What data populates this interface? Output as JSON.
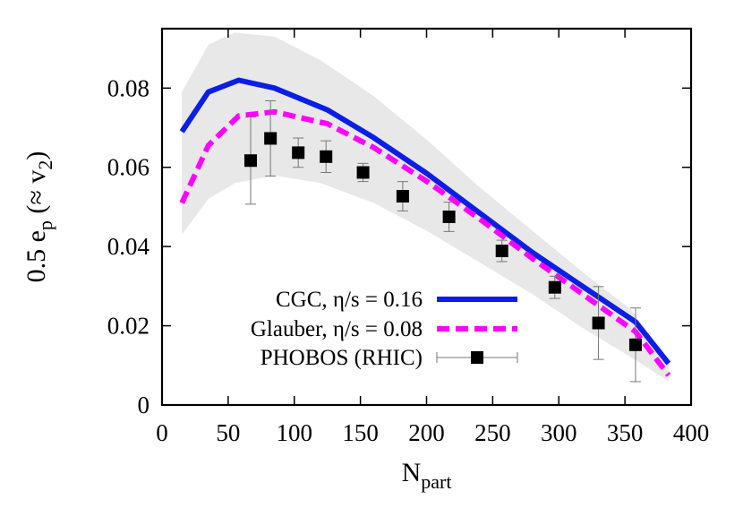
{
  "chart_data": {
    "type": "line",
    "xlabel": "N",
    "xlabel_sub": "part",
    "ylabel_parts": [
      "0.5 e",
      "p",
      " (≈ v",
      "2",
      ")"
    ],
    "xlim": [
      0,
      400
    ],
    "ylim": [
      0,
      0.095
    ],
    "xticks": [
      0,
      50,
      100,
      150,
      200,
      250,
      300,
      350,
      400
    ],
    "yticks": [
      0,
      0.02,
      0.04,
      0.06,
      0.08
    ],
    "xtick_labels": [
      "0",
      "50",
      "100",
      "150",
      "200",
      "250",
      "300",
      "350",
      "400"
    ],
    "ytick_labels": [
      "0",
      "0.02",
      "0.04",
      "0.06",
      "0.08"
    ],
    "legend_position": "bottom-right",
    "band": {
      "color": "#e8e8e8",
      "x": [
        15,
        35,
        55,
        85,
        120,
        160,
        200,
        240,
        280,
        320,
        355,
        383
      ],
      "upper": [
        0.079,
        0.091,
        0.094,
        0.093,
        0.087,
        0.078,
        0.067,
        0.055,
        0.044,
        0.033,
        0.024,
        0.011
      ],
      "lower": [
        0.043,
        0.052,
        0.056,
        0.058,
        0.056,
        0.051,
        0.044,
        0.036,
        0.028,
        0.019,
        0.012,
        0.006
      ]
    },
    "series": [
      {
        "name": "CGC, η/s = 0.16",
        "style": "solid",
        "color": "#0a1ee6",
        "x": [
          15,
          35,
          58,
          85,
          125,
          160,
          200,
          240,
          280,
          320,
          358,
          383
        ],
        "y": [
          0.069,
          0.079,
          0.082,
          0.08,
          0.0745,
          0.0675,
          0.0585,
          0.0485,
          0.0385,
          0.0295,
          0.021,
          0.0105
        ]
      },
      {
        "name": "Glauber, η/s = 0.08",
        "style": "dashed",
        "color": "#ff00ff",
        "x": [
          15,
          35,
          58,
          85,
          125,
          160,
          200,
          240,
          280,
          320,
          358,
          383
        ],
        "y": [
          0.051,
          0.0655,
          0.073,
          0.074,
          0.071,
          0.065,
          0.0565,
          0.047,
          0.037,
          0.0275,
          0.0185,
          0.0075
        ]
      },
      {
        "name": "PHOBOS (RHIC)",
        "style": "points",
        "color": "#000000",
        "x": [
          67,
          82,
          103,
          124,
          152,
          182,
          217,
          257,
          297,
          330,
          358
        ],
        "y": [
          0.0617,
          0.0673,
          0.0637,
          0.0627,
          0.0587,
          0.0527,
          0.0475,
          0.0389,
          0.0297,
          0.0207,
          0.0152
        ],
        "yerr": [
          0.011,
          0.0095,
          0.0037,
          0.004,
          0.0023,
          0.0037,
          0.0037,
          0.0027,
          0.0028,
          0.0092,
          0.0093
        ]
      }
    ]
  }
}
